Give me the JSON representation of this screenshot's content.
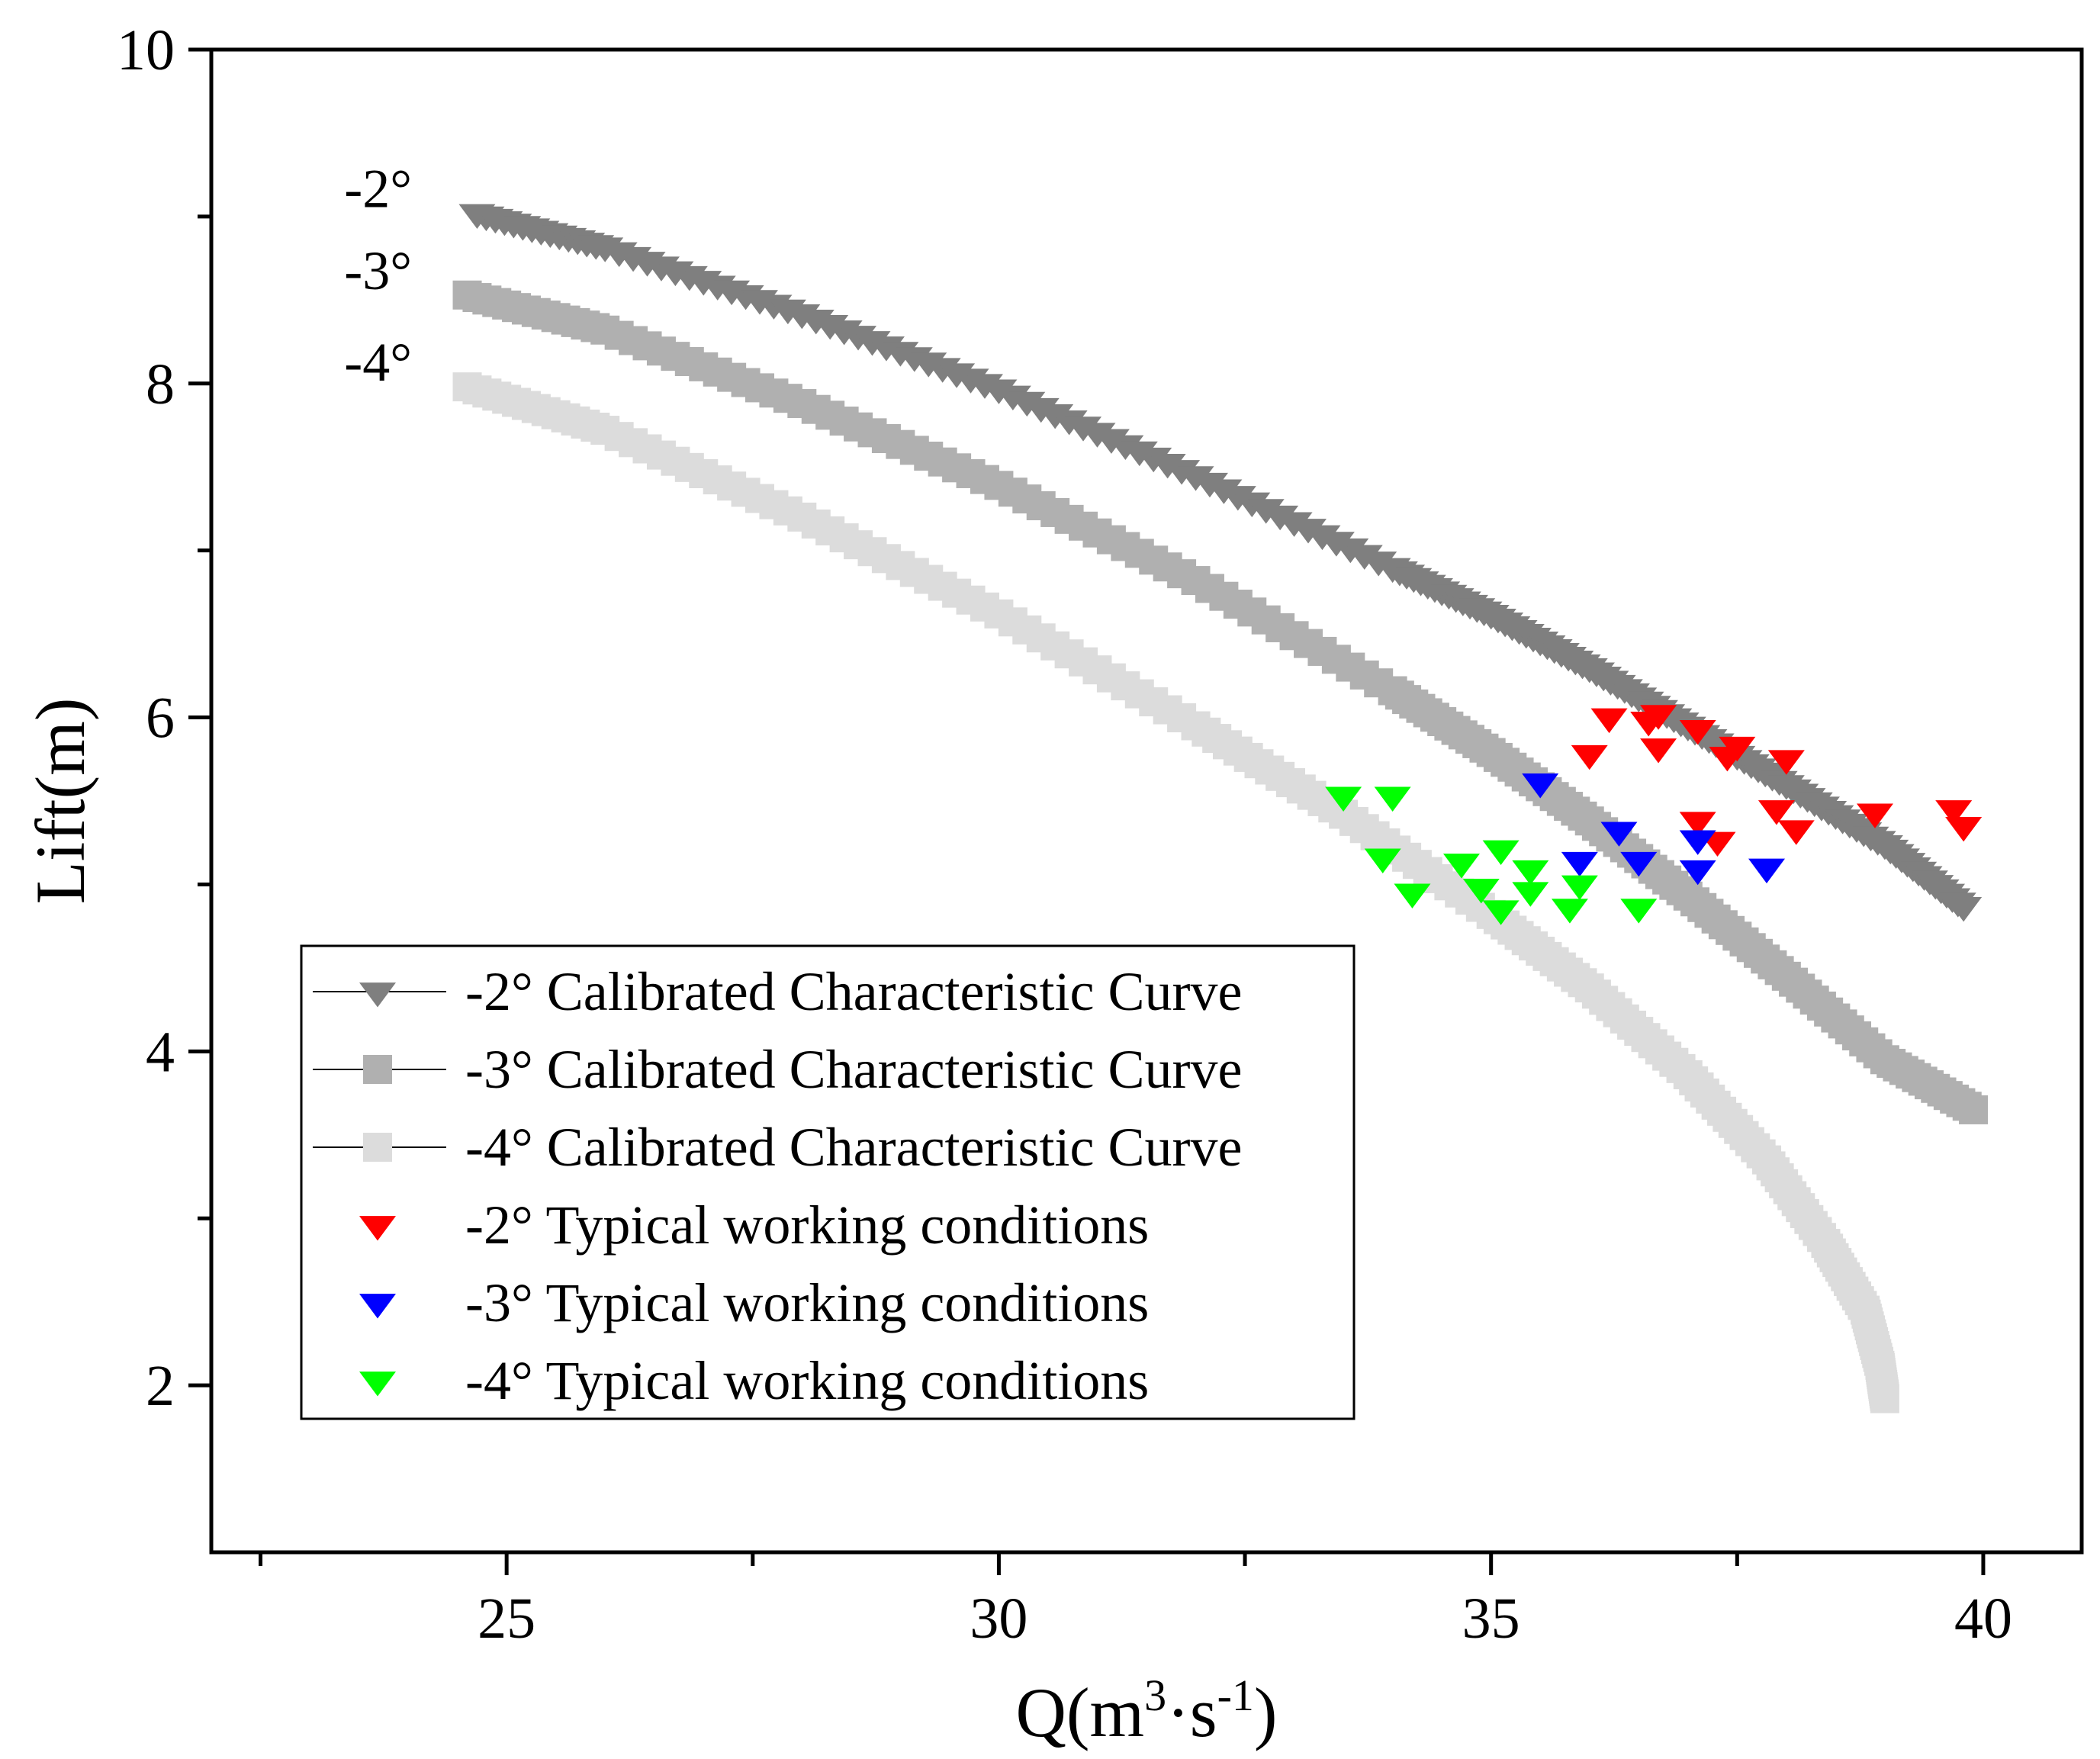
{
  "chart_data": {
    "type": "scatter",
    "title": "",
    "xlabel": {
      "base": "Q(m",
      "sup1": "3",
      "mid": "·s",
      "sup2": "-1",
      "end": ")"
    },
    "ylabel": "Lift(m)",
    "xlim": [
      22,
      41
    ],
    "ylim": [
      1,
      10
    ],
    "x_ticks": [
      25,
      30,
      35,
      40
    ],
    "x_minor_ticks": [
      22.5,
      27.5,
      32.5,
      37.5
    ],
    "y_ticks": [
      2,
      4,
      6,
      8,
      10
    ],
    "y_minor_ticks": [
      3,
      5,
      7,
      9
    ],
    "grid": false,
    "legend_position": "lower-left",
    "curve_labels": [
      "-2°",
      "-3°",
      "-4°"
    ],
    "colors": {
      "curve_m2": "#7f7f7f",
      "curve_m3": "#b0b0b0",
      "curve_m4": "#dcdcdc",
      "typical_m2": "#ff0000",
      "typical_m3": "#0000ff",
      "typical_m4": "#00ff00"
    },
    "series": [
      {
        "name": "-2° Calibrated Characteristic Curve",
        "kind": "curve",
        "marker": "triangle-down",
        "color": "#7f7f7f",
        "x": [
          24.7,
          26.0,
          28.0,
          30.0,
          32.0,
          34.0,
          35.0,
          36.0,
          37.0,
          38.0,
          39.0,
          39.8
        ],
        "y": [
          9.02,
          8.82,
          8.42,
          7.97,
          7.45,
          6.9,
          6.62,
          6.3,
          5.95,
          5.6,
          5.24,
          4.87
        ]
      },
      {
        "name": "-3° Calibrated Characteristic Curve",
        "kind": "curve",
        "marker": "square",
        "color": "#b0b0b0",
        "x": [
          24.6,
          26.0,
          28.0,
          30.0,
          32.0,
          34.0,
          35.0,
          36.0,
          37.0,
          38.0,
          39.0,
          39.9
        ],
        "y": [
          8.53,
          8.32,
          7.88,
          7.39,
          6.82,
          6.16,
          5.79,
          5.38,
          4.93,
          4.45,
          3.95,
          3.65
        ]
      },
      {
        "name": "-4° Calibrated Characteristic Curve",
        "kind": "curve",
        "marker": "square",
        "color": "#dcdcdc",
        "x": [
          24.6,
          26.0,
          28.0,
          30.0,
          32.0,
          33.5,
          35.0,
          36.0,
          37.0,
          37.8,
          38.4,
          38.8,
          38.95,
          39.0
        ],
        "y": [
          7.98,
          7.72,
          7.2,
          6.62,
          5.95,
          5.42,
          4.82,
          4.38,
          3.86,
          3.35,
          2.85,
          2.45,
          2.12,
          1.92
        ]
      },
      {
        "name": "-2° Typical working conditions",
        "kind": "points",
        "marker": "triangle-down",
        "color": "#ff0000",
        "x": [
          36.2,
          36.0,
          36.6,
          36.7,
          36.7,
          37.1,
          37.4,
          37.5,
          37.1,
          37.3,
          38.0,
          37.9,
          38.1,
          38.9,
          39.7,
          39.8
        ],
        "y": [
          6.0,
          5.78,
          5.98,
          5.82,
          6.02,
          5.93,
          5.77,
          5.83,
          5.38,
          5.26,
          5.75,
          5.45,
          5.33,
          5.43,
          5.45,
          5.35
        ]
      },
      {
        "name": "-3° Typical working conditions",
        "kind": "points",
        "marker": "triangle-down",
        "color": "#0000ff",
        "x": [
          35.5,
          36.3,
          35.9,
          36.5,
          37.1,
          37.1,
          37.8
        ],
        "y": [
          5.61,
          5.32,
          5.14,
          5.14,
          5.27,
          5.09,
          5.1
        ]
      },
      {
        "name": "-4° Typical working conditions",
        "kind": "points",
        "marker": "triangle-down",
        "color": "#00ff00",
        "x": [
          33.5,
          34.0,
          33.9,
          34.2,
          34.7,
          34.9,
          35.1,
          35.1,
          35.4,
          35.4,
          35.8,
          35.9,
          36.5
        ],
        "y": [
          5.53,
          5.53,
          5.16,
          4.95,
          5.13,
          4.98,
          4.85,
          5.21,
          5.09,
          4.96,
          4.86,
          5.0,
          4.86
        ]
      }
    ]
  }
}
